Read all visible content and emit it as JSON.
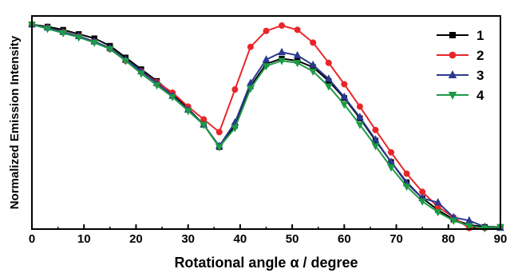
{
  "chart_data": {
    "type": "line",
    "xlabel": "Rotational angle α / degree",
    "ylabel": "Normalized Emission Intensity",
    "xlim": [
      0,
      90
    ],
    "ylim": [
      0,
      1
    ],
    "x_ticks": [
      0,
      10,
      20,
      30,
      40,
      50,
      60,
      70,
      80,
      90
    ],
    "y_ticks_shown": false,
    "grid": false,
    "legend_position": "top-right",
    "series": [
      {
        "name": "1",
        "color": "#000000",
        "marker": "square",
        "x": [
          0,
          3,
          6,
          9,
          12,
          15,
          18,
          21,
          24,
          27,
          30,
          33,
          36,
          39,
          42,
          45,
          48,
          51,
          54,
          57,
          60,
          63,
          66,
          69,
          72,
          75,
          78,
          81,
          84,
          87,
          90
        ],
        "y": [
          0.96,
          0.95,
          0.935,
          0.915,
          0.895,
          0.86,
          0.805,
          0.75,
          0.695,
          0.635,
          0.565,
          0.49,
          0.385,
          0.485,
          0.67,
          0.775,
          0.8,
          0.79,
          0.76,
          0.695,
          0.615,
          0.52,
          0.415,
          0.315,
          0.22,
          0.145,
          0.09,
          0.045,
          0.02,
          0.01,
          0.01
        ]
      },
      {
        "name": "2",
        "color": "#e8262a",
        "marker": "circle",
        "x": [
          0,
          3,
          6,
          9,
          12,
          15,
          18,
          21,
          24,
          27,
          30,
          33,
          36,
          39,
          42,
          45,
          48,
          51,
          54,
          57,
          60,
          63,
          66,
          69,
          72,
          75,
          78,
          81,
          84,
          87,
          90
        ],
        "y": [
          0.96,
          0.945,
          0.925,
          0.905,
          0.88,
          0.845,
          0.79,
          0.74,
          0.69,
          0.64,
          0.575,
          0.515,
          0.455,
          0.655,
          0.855,
          0.93,
          0.955,
          0.935,
          0.875,
          0.78,
          0.68,
          0.575,
          0.465,
          0.36,
          0.26,
          0.175,
          0.105,
          0.055,
          0.005,
          0.005,
          0.01
        ]
      },
      {
        "name": "3",
        "color": "#2b3990",
        "marker": "triangle-up",
        "x": [
          0,
          3,
          6,
          9,
          12,
          15,
          18,
          21,
          24,
          27,
          30,
          33,
          36,
          39,
          42,
          45,
          48,
          51,
          54,
          57,
          60,
          63,
          66,
          69,
          72,
          75,
          78,
          81,
          84,
          87,
          90
        ],
        "y": [
          0.96,
          0.945,
          0.925,
          0.905,
          0.88,
          0.85,
          0.795,
          0.74,
          0.685,
          0.625,
          0.56,
          0.49,
          0.39,
          0.5,
          0.685,
          0.795,
          0.83,
          0.815,
          0.77,
          0.705,
          0.62,
          0.525,
          0.42,
          0.315,
          0.215,
          0.145,
          0.125,
          0.055,
          0.04,
          0.01,
          0.005
        ]
      },
      {
        "name": "4",
        "color": "#1d9a45",
        "marker": "triangle-down",
        "x": [
          0,
          3,
          6,
          9,
          12,
          15,
          18,
          21,
          24,
          27,
          30,
          33,
          36,
          39,
          42,
          45,
          48,
          51,
          54,
          57,
          60,
          63,
          66,
          69,
          72,
          75,
          78,
          81,
          84,
          87,
          90
        ],
        "y": [
          0.96,
          0.94,
          0.92,
          0.9,
          0.875,
          0.845,
          0.79,
          0.73,
          0.675,
          0.62,
          0.555,
          0.49,
          0.385,
          0.475,
          0.66,
          0.765,
          0.79,
          0.78,
          0.74,
          0.67,
          0.585,
          0.49,
          0.39,
          0.29,
          0.2,
          0.13,
          0.08,
          0.04,
          0.015,
          0.005,
          0.01
        ]
      }
    ]
  }
}
